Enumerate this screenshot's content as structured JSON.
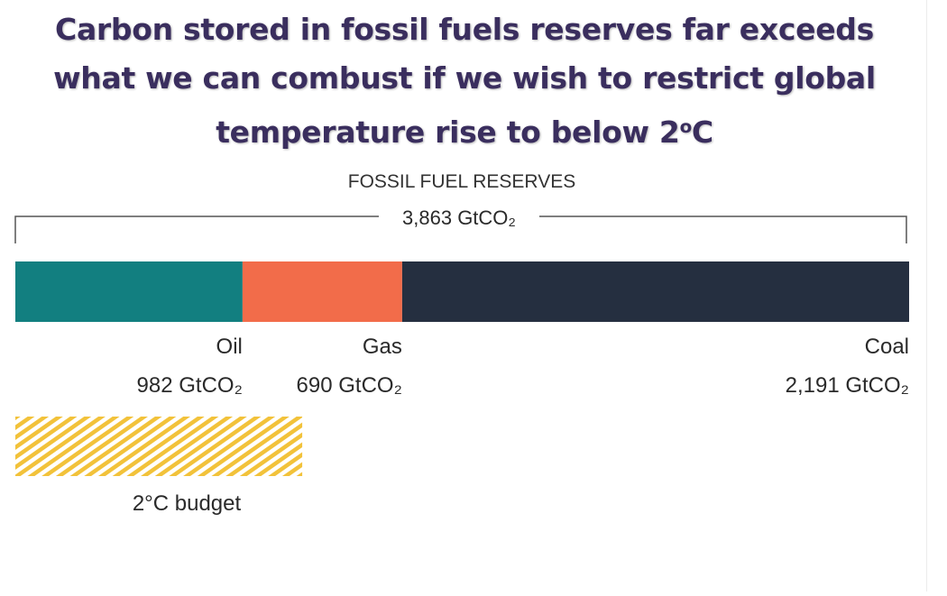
{
  "headline": {
    "line1": "Carbon stored in fossil fuels reserves far exceeds",
    "line2": "what we can combust if we wish to restrict global",
    "line3_prefix": "temperature rise to below 2",
    "line3_degree": "o",
    "line3_suffix": "C"
  },
  "chart_data": {
    "type": "bar",
    "orientation": "horizontal-stacked",
    "title": "FOSSIL FUEL RESERVES",
    "total_label": "3,863 GtCO₂",
    "total": 3863,
    "unit": "GtCO₂",
    "categories": [
      "Oil",
      "Gas",
      "Coal"
    ],
    "values": [
      982,
      690,
      2191
    ],
    "value_labels": [
      "982 GtCO₂",
      "690 GtCO₂",
      "2,191 GtCO₂"
    ],
    "colors": [
      "#127f80",
      "#f26c4a",
      "#252f40"
    ],
    "budget": {
      "label": "2°C budget",
      "value": 1240,
      "color": "#f2c23a"
    }
  }
}
